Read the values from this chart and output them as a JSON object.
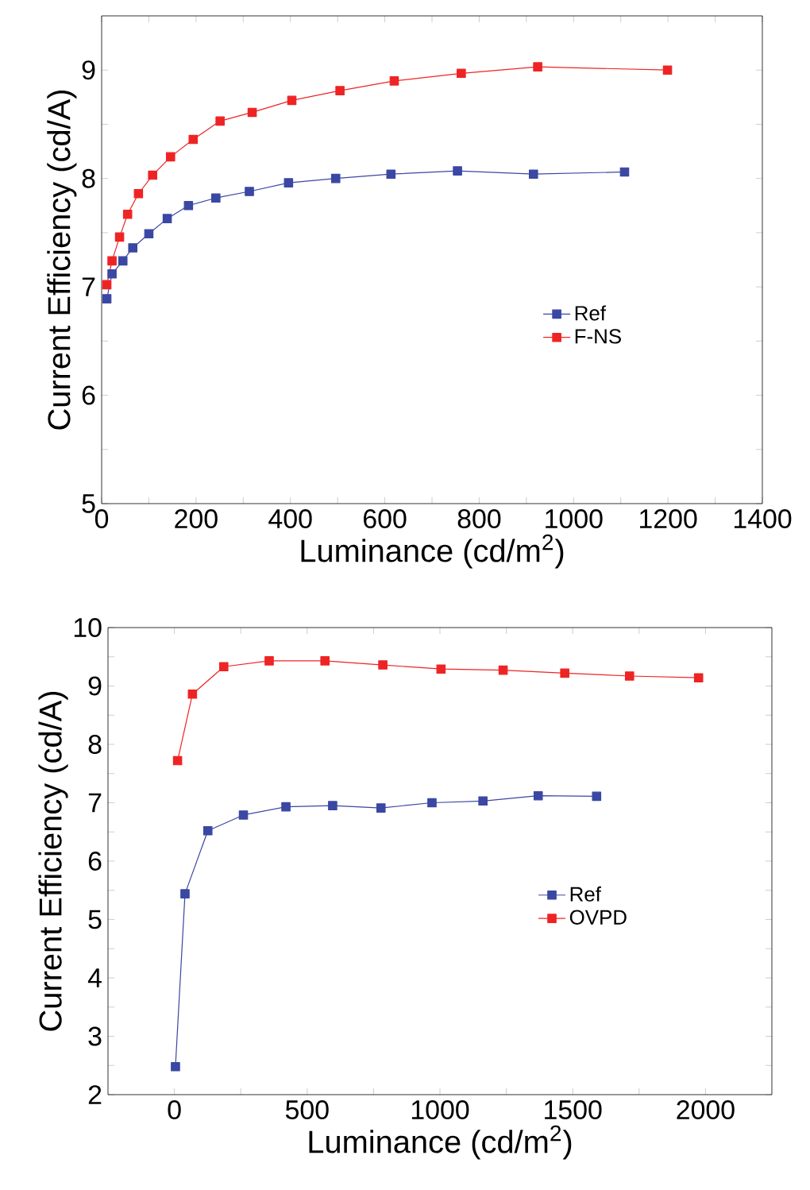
{
  "chart_data": [
    {
      "type": "line",
      "xlabel": "Luminance (cd/m$^{2}$)",
      "ylabel": "Current Efficiency (cd/A)",
      "xlim": [
        0,
        1400
      ],
      "ylim": [
        5,
        9.5
      ],
      "xticks": [
        0,
        {
          "value": 100,
          "label": null
        },
        200,
        {
          "value": 300,
          "label": null
        },
        400,
        {
          "value": 500,
          "label": null
        },
        600,
        {
          "value": 700,
          "label": null
        },
        800,
        {
          "value": 900,
          "label": null
        },
        1000,
        {
          "value": 1100,
          "label": null
        },
        1200,
        {
          "value": 1300,
          "label": null
        },
        1400
      ],
      "yticks": [
        5,
        {
          "value": 5.5,
          "label": null
        },
        6,
        {
          "value": 6.5,
          "label": null
        },
        7,
        {
          "value": 7.5,
          "label": null
        },
        8,
        {
          "value": 8.5,
          "label": null
        },
        9
      ],
      "legend": "right",
      "marker": "square",
      "line_style": "solid",
      "grid": false,
      "series": [
        {
          "name": "Ref",
          "color": "#3a47a3",
          "x": [
            11,
            22,
            45,
            66,
            100,
            139,
            184,
            242,
            313,
            396,
            496,
            613,
            754,
            915,
            1108
          ],
          "values": [
            6.89,
            7.12,
            7.24,
            7.36,
            7.49,
            7.63,
            7.75,
            7.82,
            7.88,
            7.96,
            8.0,
            8.04,
            8.07,
            8.04,
            8.06
          ]
        },
        {
          "name": "F-NS",
          "color": "#ee2424",
          "x": [
            11,
            22,
            38,
            55,
            78,
            108,
            146,
            194,
            251,
            319,
            403,
            505,
            620,
            762,
            924,
            1199
          ],
          "values": [
            7.02,
            7.24,
            7.46,
            7.67,
            7.86,
            8.03,
            8.2,
            8.36,
            8.53,
            8.61,
            8.72,
            8.81,
            8.9,
            8.97,
            9.03,
            9.0
          ]
        }
      ]
    },
    {
      "type": "line",
      "xlabel": "Luminance (cd/m$^{2}$)",
      "ylabel": "Current Efficiency (cd/A)",
      "xlim": [
        -250,
        2250
      ],
      "ylim": [
        2,
        10
      ],
      "xticks": [
        0,
        {
          "value": 250,
          "label": null
        },
        500,
        {
          "value": 750,
          "label": null
        },
        1000,
        {
          "value": 1250,
          "label": null
        },
        1500,
        {
          "value": 1750,
          "label": null
        },
        2000
      ],
      "yticks": [
        2,
        {
          "value": 2.5,
          "label": null
        },
        3,
        {
          "value": 3.5,
          "label": null
        },
        4,
        {
          "value": 4.5,
          "label": null
        },
        5,
        {
          "value": 5.5,
          "label": null
        },
        6,
        {
          "value": 6.5,
          "label": null
        },
        7,
        {
          "value": 7.5,
          "label": null
        },
        8,
        {
          "value": 8.5,
          "label": null
        },
        9,
        {
          "value": 9.5,
          "label": null
        },
        10
      ],
      "legend": "bottom right",
      "marker": "square",
      "line_style": "solid",
      "grid": false,
      "series": [
        {
          "name": "Ref",
          "color": "#3a47a3",
          "x": [
            4,
            40,
            126,
            260,
            420,
            596,
            778,
            970,
            1162,
            1370,
            1590
          ],
          "values": [
            2.48,
            5.44,
            6.52,
            6.79,
            6.93,
            6.95,
            6.91,
            7.0,
            7.03,
            7.12,
            7.11
          ]
        },
        {
          "name": "OVPD",
          "color": "#ee2424",
          "x": [
            12,
            68,
            186,
            357,
            567,
            785,
            1004,
            1238,
            1470,
            1714,
            1974
          ],
          "values": [
            7.72,
            8.86,
            9.33,
            9.43,
            9.43,
            9.36,
            9.29,
            9.27,
            9.22,
            9.17,
            9.14
          ]
        }
      ]
    }
  ]
}
